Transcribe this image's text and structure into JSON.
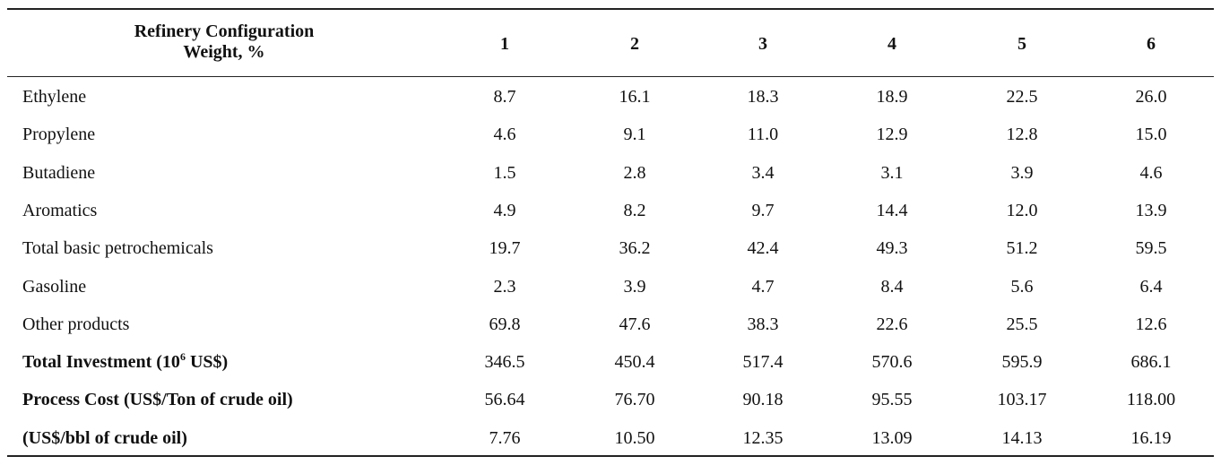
{
  "table": {
    "header": {
      "label_lines": [
        "Refinery Configuration",
        "Weight, %"
      ],
      "columns": [
        1,
        2,
        3,
        4,
        5,
        6
      ]
    },
    "rows": [
      {
        "label": "Ethylene",
        "values": [
          "8.7",
          "16.1",
          "18.3",
          "18.9",
          "22.5",
          "26.0"
        ]
      },
      {
        "label": "Propylene",
        "values": [
          "4.6",
          "9.1",
          "11.0",
          "12.9",
          "12.8",
          "15.0"
        ]
      },
      {
        "label": "Butadiene",
        "values": [
          "1.5",
          "2.8",
          "3.4",
          "3.1",
          "3.9",
          "4.6"
        ]
      },
      {
        "label": "Aromatics",
        "values": [
          "4.9",
          "8.2",
          "9.7",
          "14.4",
          "12.0",
          "13.9"
        ]
      },
      {
        "label": "Total basic petrochemicals",
        "values": [
          "19.7",
          "36.2",
          "42.4",
          "49.3",
          "51.2",
          "59.5"
        ]
      },
      {
        "label": "Gasoline",
        "values": [
          "2.3",
          "3.9",
          "4.7",
          "8.4",
          "5.6",
          "6.4"
        ]
      },
      {
        "label": "Other products",
        "values": [
          "69.8",
          "47.6",
          "38.3",
          "22.6",
          "25.5",
          "12.6"
        ]
      },
      {
        "label": {
          "before": "Total Investment (10",
          "sup": "6",
          "after": " US$)"
        },
        "values": [
          "346.5",
          "450.4",
          "517.4",
          "570.6",
          "595.9",
          "686.1"
        ]
      },
      {
        "label": "Process Cost (US$/Ton of crude oil)",
        "values": [
          "56.64",
          "76.70",
          "90.18",
          "95.55",
          "103.17",
          "118.00"
        ]
      },
      {
        "label": "(US$/bbl of crude oil)",
        "values": [
          "7.76",
          "10.50",
          "12.35",
          "13.09",
          "14.13",
          "16.19"
        ]
      }
    ]
  }
}
